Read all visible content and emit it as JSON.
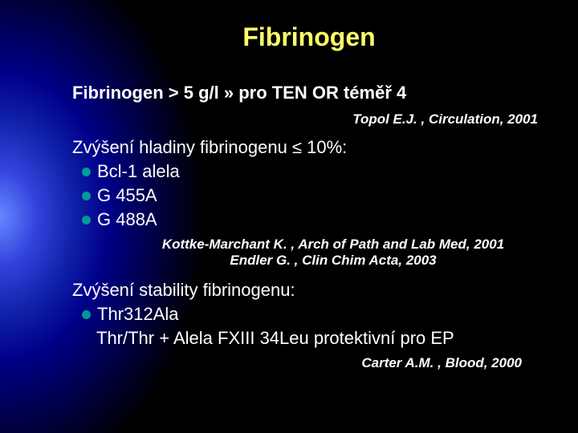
{
  "title": {
    "text": "Fibrinogen",
    "fontsize": 32,
    "color": "#ffff66"
  },
  "line1": {
    "text": "Fibrinogen > 5 g/l » pro TEN OR téměř 4",
    "fontsize": 22
  },
  "citation1": {
    "text": "Topol E.J. , Circulation, 2001",
    "fontsize": 17
  },
  "section1": {
    "head": "Zvýšení hladiny fibrinogenu ≤ 10%:",
    "fontsize": 22,
    "bullets": [
      {
        "label": "Bcl-1 alela"
      },
      {
        "label": "G 455A"
      },
      {
        "label": "G 488A"
      }
    ],
    "bullet_color": "#009999"
  },
  "citations2": {
    "lines": [
      "Kottke-Marchant K. , Arch of Path and Lab Med, 2001",
      "Endler G. , Clin Chim Acta, 2003"
    ],
    "fontsize": 17
  },
  "section2": {
    "head": "Zvýšení stability fibrinogenu:",
    "fontsize": 22,
    "bullets": [
      {
        "label": "Thr312Ala"
      }
    ],
    "extra_line": "Thr/Thr + Alela FXIII 34Leu protektivní pro EP"
  },
  "citation3": {
    "text": "Carter A.M. , Blood, 2000",
    "fontsize": 17
  },
  "colors": {
    "text": "#ffffff",
    "title": "#ffff66",
    "bullet": "#009999",
    "bg_inner": "#6688ff",
    "bg_mid": "#000088",
    "bg_outer": "#000000"
  }
}
